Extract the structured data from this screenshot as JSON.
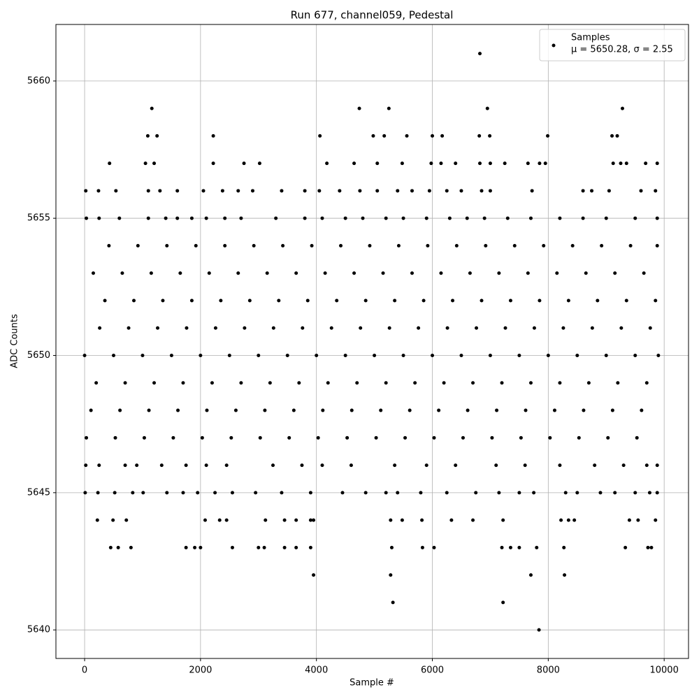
{
  "chart_data": {
    "type": "scatter",
    "title": "Run 677, channel059, Pedestal",
    "xlabel": "Sample #",
    "ylabel": "ADC Counts",
    "xlim": [
      -495,
      10420
    ],
    "ylim": [
      5638.96,
      5662.06
    ],
    "xticks": [
      0,
      2000,
      4000,
      6000,
      8000,
      10000
    ],
    "yticks": [
      5640,
      5645,
      5650,
      5655,
      5660
    ],
    "grid": true,
    "legend_loc": "upper right",
    "series": [
      {
        "name": "Samples",
        "legend_stats": "μ = 5650.28, σ = 2.55",
        "color": "#000000",
        "x": [
          30,
          530,
          1030,
          1530,
          2030,
          2530,
          3030,
          3530,
          4030,
          4530,
          5030,
          5530,
          6030,
          6530,
          7030,
          7530,
          8030,
          8530,
          9030,
          9530,
          110,
          610,
          1110,
          1610,
          2110,
          2610,
          3110,
          3610,
          4110,
          4610,
          5110,
          5610,
          6110,
          6610,
          7110,
          7610,
          8110,
          8610,
          9110,
          9610,
          200,
          700,
          1200,
          1700,
          2200,
          2700,
          3200,
          3700,
          4200,
          4700,
          5200,
          5700,
          6200,
          6700,
          7200,
          7700,
          8200,
          8700,
          9200,
          9700,
          0,
          500,
          1000,
          1500,
          2000,
          2500,
          3000,
          3500,
          4000,
          4500,
          5000,
          5500,
          6000,
          6500,
          7000,
          7500,
          8000,
          8500,
          9000,
          9500,
          9900,
          260,
          760,
          1260,
          1760,
          2260,
          2760,
          3260,
          3760,
          4260,
          4760,
          5260,
          5760,
          6260,
          6760,
          7260,
          7760,
          8260,
          8760,
          9260,
          9760,
          350,
          850,
          1350,
          1850,
          2350,
          2850,
          3350,
          3850,
          4350,
          4850,
          5350,
          5850,
          6350,
          6850,
          7350,
          7850,
          8350,
          8850,
          9350,
          9850,
          150,
          650,
          1150,
          1650,
          2150,
          2650,
          3150,
          3650,
          4150,
          4650,
          5150,
          5650,
          6150,
          6650,
          7150,
          7650,
          8150,
          8650,
          9150,
          9650,
          420,
          920,
          1420,
          1920,
          2420,
          2920,
          3420,
          3920,
          4420,
          4920,
          5420,
          5920,
          6420,
          6920,
          7420,
          7920,
          8420,
          8920,
          9420,
          9880,
          20,
          250,
          700,
          900,
          1330,
          1750,
          2100,
          2450,
          3250,
          3750,
          4100,
          4600,
          5350,
          5900,
          6400,
          7100,
          7600,
          8200,
          8800,
          9300,
          9700,
          9880,
          10,
          230,
          520,
          830,
          1010,
          1420,
          1700,
          1950,
          2250,
          2550,
          2950,
          3400,
          3900,
          4450,
          4850,
          5200,
          5400,
          5800,
          6250,
          6750,
          7150,
          7500,
          7750,
          8300,
          8500,
          8900,
          9150,
          9500,
          9750,
          9880,
          220,
          490,
          720,
          2080,
          2330,
          2450,
          3120,
          3450,
          3650,
          3900,
          3950,
          5280,
          5480,
          5820,
          6330,
          6700,
          7220,
          8220,
          8350,
          8450,
          9400,
          9550,
          9850,
          450,
          580,
          800,
          1750,
          1900,
          2000,
          2550,
          3000,
          3100,
          3450,
          3650,
          3900,
          5300,
          5830,
          6030,
          7200,
          7350,
          7500,
          7800,
          8270,
          9330,
          9720,
          9780,
          3950,
          5280,
          7700,
          8280,
          5320,
          7220,
          7840,
          30,
          250,
          600,
          1100,
          1400,
          1600,
          1850,
          2100,
          2420,
          2700,
          3300,
          3800,
          4100,
          4500,
          4800,
          5200,
          5500,
          5900,
          6300,
          6600,
          6900,
          7300,
          7700,
          8200,
          8600,
          9000,
          9500,
          9880,
          20,
          240,
          540,
          1100,
          1300,
          1600,
          2050,
          2380,
          2650,
          2900,
          3400,
          3800,
          4050,
          4400,
          4750,
          5050,
          5400,
          5650,
          5950,
          6250,
          6500,
          6850,
          7000,
          7720,
          8600,
          8750,
          9050,
          9600,
          9850,
          430,
          1050,
          1200,
          2220,
          2750,
          3020,
          4180,
          4650,
          5050,
          5480,
          5980,
          6150,
          6400,
          6820,
          7000,
          7250,
          7650,
          7850,
          7950,
          9120,
          9250,
          9350,
          9680,
          9880,
          1090,
          1250,
          2220,
          4060,
          4980,
          5170,
          5560,
          6000,
          6170,
          6810,
          6990,
          7990,
          9100,
          9190,
          1160,
          4740,
          5250,
          6950,
          9280,
          6820
        ],
        "values": [
          5647,
          5647,
          5647,
          5647,
          5647,
          5647,
          5647,
          5647,
          5647,
          5647,
          5647,
          5647,
          5647,
          5647,
          5647,
          5647,
          5647,
          5647,
          5647,
          5647,
          5648,
          5648,
          5648,
          5648,
          5648,
          5648,
          5648,
          5648,
          5648,
          5648,
          5648,
          5648,
          5648,
          5648,
          5648,
          5648,
          5648,
          5648,
          5648,
          5648,
          5649,
          5649,
          5649,
          5649,
          5649,
          5649,
          5649,
          5649,
          5649,
          5649,
          5649,
          5649,
          5649,
          5649,
          5649,
          5649,
          5649,
          5649,
          5649,
          5649,
          5650,
          5650,
          5650,
          5650,
          5650,
          5650,
          5650,
          5650,
          5650,
          5650,
          5650,
          5650,
          5650,
          5650,
          5650,
          5650,
          5650,
          5650,
          5650,
          5650,
          5650,
          5651,
          5651,
          5651,
          5651,
          5651,
          5651,
          5651,
          5651,
          5651,
          5651,
          5651,
          5651,
          5651,
          5651,
          5651,
          5651,
          5651,
          5651,
          5651,
          5651,
          5652,
          5652,
          5652,
          5652,
          5652,
          5652,
          5652,
          5652,
          5652,
          5652,
          5652,
          5652,
          5652,
          5652,
          5652,
          5652,
          5652,
          5652,
          5652,
          5652,
          5653,
          5653,
          5653,
          5653,
          5653,
          5653,
          5653,
          5653,
          5653,
          5653,
          5653,
          5653,
          5653,
          5653,
          5653,
          5653,
          5653,
          5653,
          5653,
          5653,
          5654,
          5654,
          5654,
          5654,
          5654,
          5654,
          5654,
          5654,
          5654,
          5654,
          5654,
          5654,
          5654,
          5654,
          5654,
          5654,
          5654,
          5654,
          5654,
          5654,
          5646,
          5646,
          5646,
          5646,
          5646,
          5646,
          5646,
          5646,
          5646,
          5646,
          5646,
          5646,
          5646,
          5646,
          5646,
          5646,
          5646,
          5646,
          5646,
          5646,
          5646,
          5646,
          5645,
          5645,
          5645,
          5645,
          5645,
          5645,
          5645,
          5645,
          5645,
          5645,
          5645,
          5645,
          5645,
          5645,
          5645,
          5645,
          5645,
          5645,
          5645,
          5645,
          5645,
          5645,
          5645,
          5645,
          5645,
          5645,
          5645,
          5645,
          5645,
          5645,
          5644,
          5644,
          5644,
          5644,
          5644,
          5644,
          5644,
          5644,
          5644,
          5644,
          5644,
          5644,
          5644,
          5644,
          5644,
          5644,
          5644,
          5644,
          5644,
          5644,
          5644,
          5644,
          5644,
          5643,
          5643,
          5643,
          5643,
          5643,
          5643,
          5643,
          5643,
          5643,
          5643,
          5643,
          5643,
          5643,
          5643,
          5643,
          5643,
          5643,
          5643,
          5643,
          5643,
          5643,
          5643,
          5643,
          5642,
          5642,
          5642,
          5642,
          5641,
          5641,
          5640,
          5655,
          5655,
          5655,
          5655,
          5655,
          5655,
          5655,
          5655,
          5655,
          5655,
          5655,
          5655,
          5655,
          5655,
          5655,
          5655,
          5655,
          5655,
          5655,
          5655,
          5655,
          5655,
          5655,
          5655,
          5655,
          5655,
          5655,
          5655,
          5656,
          5656,
          5656,
          5656,
          5656,
          5656,
          5656,
          5656,
          5656,
          5656,
          5656,
          5656,
          5656,
          5656,
          5656,
          5656,
          5656,
          5656,
          5656,
          5656,
          5656,
          5656,
          5656,
          5656,
          5656,
          5656,
          5656,
          5656,
          5656,
          5657,
          5657,
          5657,
          5657,
          5657,
          5657,
          5657,
          5657,
          5657,
          5657,
          5657,
          5657,
          5657,
          5657,
          5657,
          5657,
          5657,
          5657,
          5657,
          5657,
          5657,
          5657,
          5657,
          5657,
          5658,
          5658,
          5658,
          5658,
          5658,
          5658,
          5658,
          5658,
          5658,
          5658,
          5658,
          5658,
          5658,
          5658,
          5659,
          5659,
          5659,
          5659,
          5659,
          5661
        ]
      }
    ]
  }
}
